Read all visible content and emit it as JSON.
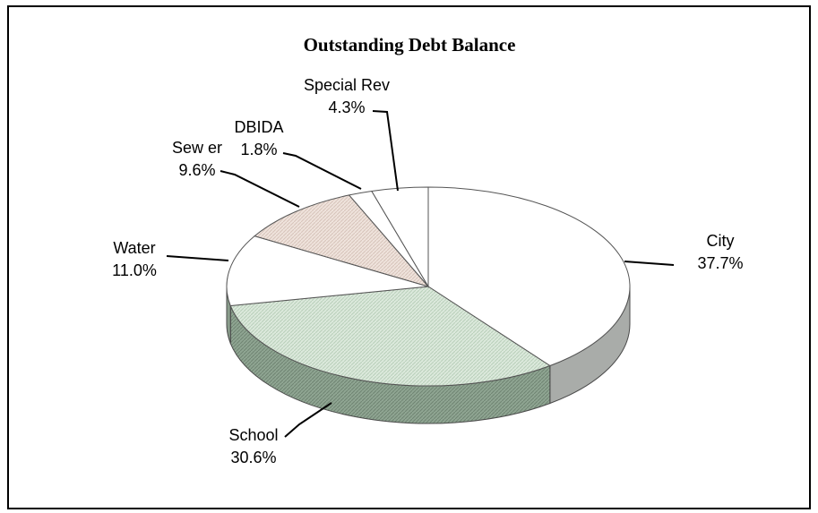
{
  "chart_data": {
    "type": "pie",
    "title": "Outstanding Debt Balance",
    "slices": [
      {
        "name": "City",
        "label": "City",
        "value": 37.7,
        "value_label": "37.7%",
        "color": "#ffffff"
      },
      {
        "name": "School",
        "label": "School",
        "value": 30.6,
        "value_label": "30.6%",
        "color": "#dce9dc"
      },
      {
        "name": "Water",
        "label": "Water",
        "value": 11.0,
        "value_label": "11.0%",
        "color": "#ffffff"
      },
      {
        "name": "Sewer",
        "label": "Sew er",
        "value": 9.6,
        "value_label": "9.6%",
        "color": "#efe3dc"
      },
      {
        "name": "DBIDA",
        "label": "DBIDA",
        "value": 1.8,
        "value_label": "1.8%",
        "color": "#ffffff"
      },
      {
        "name": "Special Rev",
        "label": "Special Rev",
        "value": 4.3,
        "value_label": "4.3%",
        "color": "#ffffff"
      }
    ],
    "style": "3d-pie",
    "legend": "none"
  }
}
